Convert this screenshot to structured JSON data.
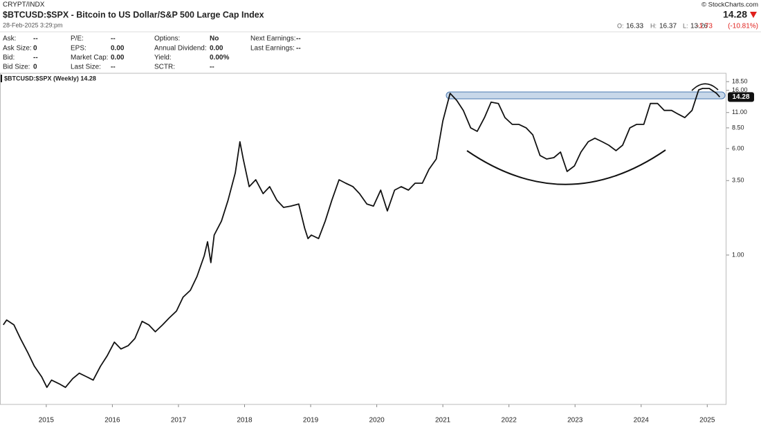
{
  "header": {
    "exchange": "CRYPT/INDX",
    "title": "$BTCUSD:$SPX - Bitcoin to US Dollar/S&P 500 Large Cap Index",
    "date": "28-Feb-2025 3:29:pm",
    "copyright": "© StockCharts.com",
    "last": "14.28",
    "open_label": "O:",
    "open": "16.33",
    "high_label": "H:",
    "high": "16.37",
    "low_label": "L:",
    "low": "13.26",
    "change": "-1.73",
    "change_pct": "(-10.81%)"
  },
  "info": {
    "columns": [
      [
        [
          "Ask:",
          "--"
        ],
        [
          "Ask Size:",
          "0"
        ],
        [
          "Bid:",
          "--"
        ],
        [
          "Bid Size:",
          "0"
        ]
      ],
      [
        [
          "P/E:",
          "--"
        ],
        [
          "EPS:",
          "0.00"
        ],
        [
          "Market Cap:",
          "0.00"
        ],
        [
          "Last Size:",
          "--"
        ]
      ],
      [
        [
          "Options:",
          "No"
        ],
        [
          "Annual Dividend:",
          "0.00"
        ],
        [
          "Yield:",
          "0.00%"
        ],
        [
          "SCTR:",
          "--"
        ]
      ],
      [
        [
          "Next Earnings:",
          "--"
        ],
        [
          "Last Earnings:",
          "--"
        ]
      ]
    ]
  },
  "chart_data": {
    "type": "line",
    "legend_label": "$BTCUSD:$SPX (Weekly) 14.28",
    "log_scale": true,
    "grid": false,
    "xlim": [
      2014.3,
      2025.29
    ],
    "xticks": [
      2015,
      2016,
      2017,
      2018,
      2019,
      2020,
      2021,
      2022,
      2023,
      2024,
      2025
    ],
    "ylim": [
      0.081,
      20.8
    ],
    "yticks": [
      {
        "value": 1,
        "label": "1.00"
      },
      {
        "value": 3.5,
        "label": "3.50"
      },
      {
        "value": 6,
        "label": "6.00"
      },
      {
        "value": 8.5,
        "label": "8.50"
      },
      {
        "value": 11,
        "label": "11.00"
      },
      {
        "value": 16,
        "label": "16.00"
      },
      {
        "value": 18.5,
        "label": "18.50"
      }
    ],
    "x": [
      2014.35,
      2014.4,
      2014.51,
      2014.61,
      2014.72,
      2014.82,
      2014.93,
      2015.01,
      2015.08,
      2015.19,
      2015.29,
      2015.4,
      2015.5,
      2015.61,
      2015.71,
      2015.82,
      2015.92,
      2016.03,
      2016.13,
      2016.24,
      2016.34,
      2016.45,
      2016.55,
      2016.65,
      2016.76,
      2016.86,
      2016.97,
      2017.07,
      2017.18,
      2017.28,
      2017.39,
      2017.44,
      2017.49,
      2017.54,
      2017.65,
      2017.75,
      2017.86,
      2017.93,
      2017.98,
      2018.07,
      2018.17,
      2018.28,
      2018.38,
      2018.49,
      2018.59,
      2018.7,
      2018.82,
      2018.91,
      2018.96,
      2019.01,
      2019.12,
      2019.22,
      2019.32,
      2019.43,
      2019.53,
      2019.64,
      2019.74,
      2019.85,
      2019.95,
      2020.06,
      2020.16,
      2020.27,
      2020.37,
      2020.48,
      2020.58,
      2020.69,
      2020.79,
      2020.9,
      2021.0,
      2021.11,
      2021.21,
      2021.31,
      2021.42,
      2021.52,
      2021.63,
      2021.73,
      2021.84,
      2021.94,
      2022.05,
      2022.15,
      2022.26,
      2022.36,
      2022.47,
      2022.57,
      2022.68,
      2022.78,
      2022.88,
      2022.99,
      2023.09,
      2023.2,
      2023.3,
      2023.41,
      2023.51,
      2023.62,
      2023.72,
      2023.83,
      2023.93,
      2024.04,
      2024.14,
      2024.25,
      2024.35,
      2024.46,
      2024.56,
      2024.66,
      2024.77,
      2024.87,
      2024.93,
      2025.03,
      2025.14,
      2025.19
    ],
    "series": [
      {
        "name": "$BTCUSD:$SPX",
        "color": "#111111",
        "values": [
          0.309,
          0.335,
          0.309,
          0.245,
          0.194,
          0.154,
          0.129,
          0.108,
          0.122,
          0.115,
          0.108,
          0.125,
          0.137,
          0.129,
          0.122,
          0.154,
          0.183,
          0.231,
          0.206,
          0.218,
          0.245,
          0.328,
          0.309,
          0.275,
          0.309,
          0.347,
          0.39,
          0.492,
          0.553,
          0.697,
          0.988,
          1.25,
          0.88,
          1.4,
          1.77,
          2.51,
          3.99,
          6.73,
          5.03,
          3.16,
          3.55,
          2.81,
          3.16,
          2.51,
          2.23,
          2.28,
          2.36,
          1.57,
          1.32,
          1.4,
          1.32,
          1.77,
          2.51,
          3.55,
          3.35,
          3.16,
          2.81,
          2.36,
          2.28,
          2.98,
          2.1,
          2.98,
          3.16,
          2.98,
          3.35,
          3.35,
          4.23,
          5.03,
          9.54,
          15.2,
          13.5,
          11.4,
          8.5,
          8.01,
          10.1,
          13.1,
          12.8,
          10.1,
          9.01,
          9.01,
          8.5,
          7.56,
          5.34,
          5.03,
          5.15,
          5.66,
          4.08,
          4.48,
          5.66,
          6.73,
          7.14,
          6.73,
          6.35,
          5.79,
          6.35,
          8.5,
          9.01,
          9.01,
          12.8,
          12.8,
          11.4,
          11.4,
          10.7,
          10.1,
          11.4,
          16.1,
          16.5,
          16.5,
          15.2,
          14.28
        ]
      }
    ]
  }
}
